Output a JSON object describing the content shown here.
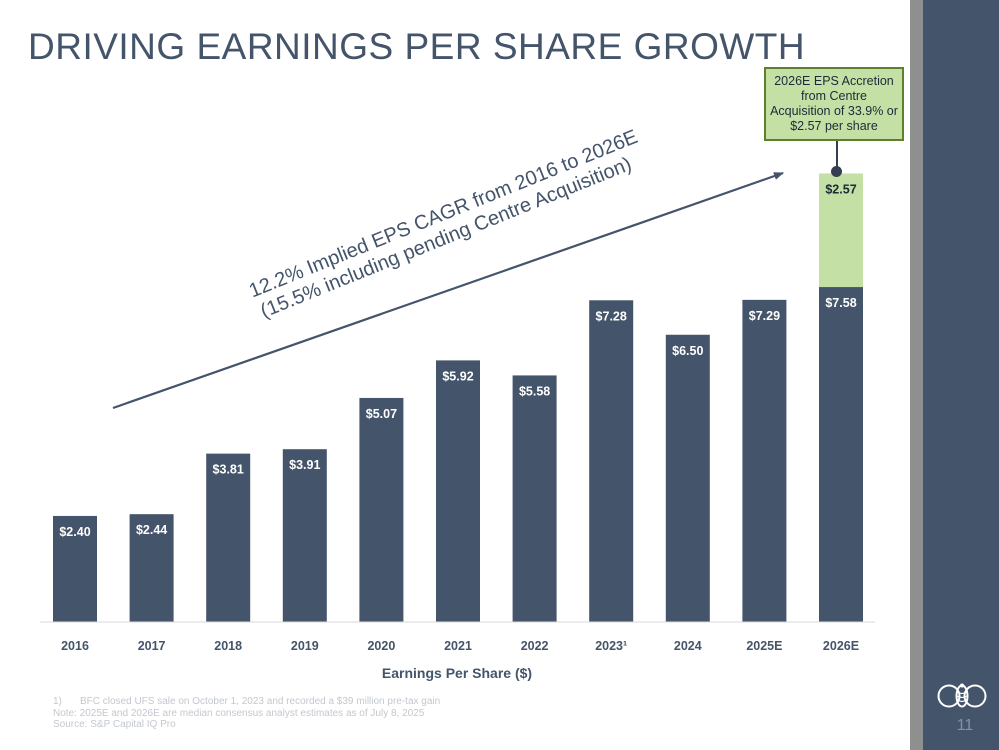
{
  "title": "DRIVING EARNINGS PER SHARE GROWTH",
  "callout": "2026E EPS Accretion from Centre Acquisition of 33.9% or $2.57 per share",
  "cagr_line1": "12.2% Implied EPS CAGR from 2016 to 2026E",
  "cagr_line2": "(15.5% including pending Centre Acquisition)",
  "footnotes": {
    "note1_marker": "1)",
    "note1": "BFC closed UFS sale on October 1, 2023 and recorded a $39 million pre-tax gain",
    "note2": "Note: 2025E and 2026E are median consensus analyst estimates as of July 8, 2025",
    "source": "Source: S&P Capital IQ Pro"
  },
  "page_number": "11",
  "colors": {
    "bar": "#44546a",
    "accretion": "#c5e0a5",
    "text_dark": "#44546a",
    "panel": "#44546a"
  },
  "chart_data": {
    "type": "bar",
    "title": "",
    "xlabel": "Earnings Per Share ($)",
    "ylabel": "",
    "ylim": [
      0,
      10.5
    ],
    "categories": [
      "2016",
      "2017",
      "2018",
      "2019",
      "2020",
      "2021",
      "2022",
      "2023¹",
      "2024",
      "2025E",
      "2026E"
    ],
    "series": [
      {
        "name": "EPS",
        "values": [
          2.4,
          2.44,
          3.81,
          3.91,
          5.07,
          5.92,
          5.58,
          7.28,
          6.5,
          7.29,
          7.58
        ],
        "labels": [
          "$2.40",
          "$2.44",
          "$3.81",
          "$3.91",
          "$5.07",
          "$5.92",
          "$5.58",
          "$7.28",
          "$6.50",
          "$7.29",
          "$7.58"
        ]
      },
      {
        "name": "Centre Acquisition Accretion",
        "values": [
          null,
          null,
          null,
          null,
          null,
          null,
          null,
          null,
          null,
          null,
          2.57
        ],
        "labels": [
          "",
          "",
          "",
          "",
          "",
          "",
          "",
          "",
          "",
          "",
          "$2.57"
        ]
      }
    ]
  }
}
